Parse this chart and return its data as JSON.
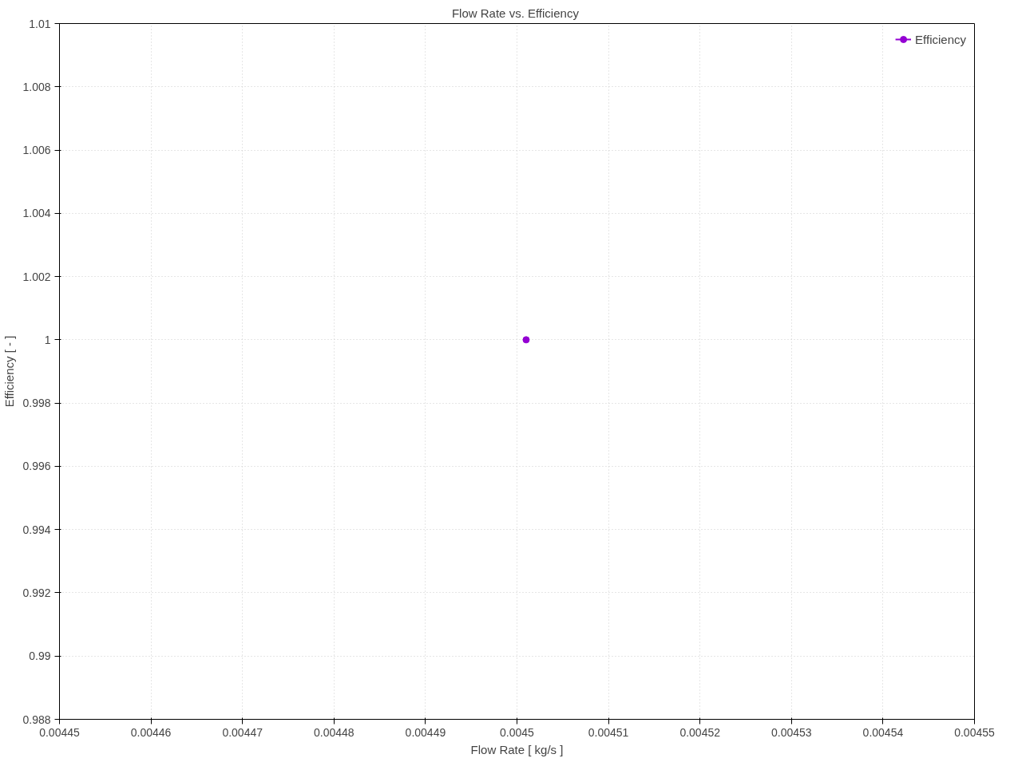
{
  "chart_data": {
    "type": "line",
    "title": "Flow Rate  vs. Efficiency",
    "xlabel": "Flow Rate [ kg/s ]",
    "ylabel": "Efficiency [ - ]",
    "x": [
      0.004501
    ],
    "series": [
      {
        "name": "Efficiency",
        "color": "#9400d3",
        "values": [
          1
        ]
      }
    ],
    "xlim": [
      0.00445,
      0.00455
    ],
    "xticks": [
      0.00445,
      0.00446,
      0.00447,
      0.00448,
      0.00449,
      0.0045,
      0.00451,
      0.00452,
      0.00453,
      0.00454,
      0.00455
    ],
    "ylim": [
      0.988,
      1.01
    ],
    "yticks": [
      0.988,
      0.99,
      0.992,
      0.994,
      0.996,
      0.998,
      1,
      1.002,
      1.004,
      1.006,
      1.008,
      1.01
    ],
    "grid": true,
    "legend": "top right",
    "marker": "circle",
    "line_style": "solid"
  }
}
